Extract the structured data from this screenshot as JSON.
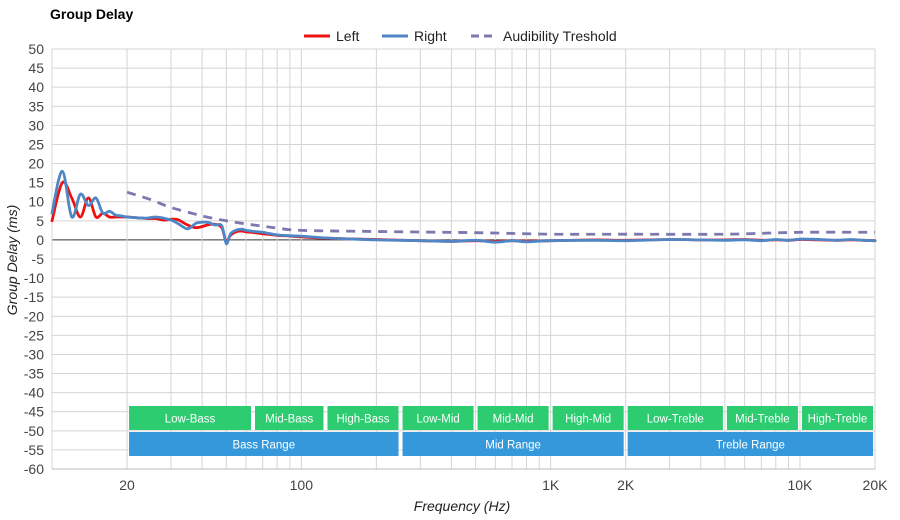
{
  "chart_data": {
    "type": "line",
    "title": "Group Delay",
    "xlabel": "Frequency (Hz)",
    "ylabel": "Group Delay (ms)",
    "xscale": "log",
    "xlim": [
      10,
      20000
    ],
    "ylim": [
      -60,
      50
    ],
    "ystep": 5,
    "xticks": [
      {
        "value": 20,
        "label": "20"
      },
      {
        "value": 100,
        "label": "100"
      },
      {
        "value": 1000,
        "label": "1K"
      },
      {
        "value": 2000,
        "label": "2K"
      },
      {
        "value": 10000,
        "label": "10K"
      },
      {
        "value": 20000,
        "label": "20K"
      }
    ],
    "grid": true,
    "legend": {
      "position": "top-center"
    },
    "series": [
      {
        "name": "Left",
        "color": "#ee1111",
        "style": "solid",
        "x": [
          10,
          11,
          12,
          13,
          14,
          15,
          16,
          17,
          18,
          19,
          20,
          22,
          24,
          26,
          28,
          30,
          32,
          35,
          38,
          42,
          45,
          48,
          50,
          52,
          55,
          58,
          60,
          65,
          70,
          80,
          90,
          100,
          120,
          150,
          200,
          300,
          400,
          500,
          600,
          700,
          800,
          1000,
          1500,
          2000,
          3000,
          4000,
          5000,
          6000,
          7000,
          8000,
          9000,
          10000,
          12000,
          14000,
          16000,
          18000,
          20000
        ],
        "y": [
          5,
          15,
          11,
          6,
          11,
          6,
          7,
          6,
          6,
          6,
          6,
          5.8,
          5.6,
          5.6,
          5.2,
          5.4,
          5.3,
          3.9,
          3.2,
          3.9,
          4.1,
          3.2,
          -0.5,
          1.2,
          2.2,
          2.3,
          2.1,
          1.9,
          1.6,
          1.2,
          1.0,
          0.8,
          0.5,
          0.3,
          0.1,
          -0.2,
          -0.4,
          -0.2,
          -0.4,
          -0.2,
          -0.3,
          -0.2,
          0,
          -0.1,
          0.1,
          0,
          0,
          0.1,
          -0.1,
          0,
          -0.1,
          0.1,
          0,
          -0.1,
          0,
          -0.1,
          -0.2
        ]
      },
      {
        "name": "Right",
        "color": "#4f86c6",
        "style": "solid",
        "x": [
          10,
          11,
          12,
          13,
          14,
          15,
          16,
          17,
          18,
          19,
          20,
          22,
          24,
          26,
          28,
          30,
          32,
          35,
          38,
          42,
          45,
          48,
          50,
          52,
          55,
          58,
          60,
          65,
          70,
          80,
          90,
          100,
          120,
          150,
          200,
          300,
          400,
          500,
          600,
          700,
          800,
          1000,
          1500,
          2000,
          3000,
          4000,
          5000,
          6000,
          7000,
          8000,
          9000,
          10000,
          12000,
          14000,
          16000,
          18000,
          20000
        ],
        "y": [
          7,
          18,
          6,
          12,
          9,
          11,
          7,
          7.5,
          6.5,
          6.3,
          6,
          5.8,
          5.7,
          6,
          5.7,
          5.2,
          4.3,
          2.9,
          4.4,
          4.6,
          3.9,
          3.7,
          -1.0,
          1.6,
          2.6,
          2.8,
          2.5,
          2.2,
          2.0,
          1.3,
          1.1,
          1.0,
          0.6,
          0.3,
          0,
          -0.2,
          -0.4,
          -0.1,
          -0.6,
          -0.2,
          -0.5,
          -0.2,
          -0.1,
          -0.2,
          0.1,
          0,
          -0.1,
          0,
          -0.2,
          0.1,
          -0.1,
          0.2,
          0.1,
          -0.1,
          0.1,
          -0.1,
          -0.2
        ]
      },
      {
        "name": "Audibility Treshold",
        "color": "#7b79ad",
        "style": "dashed",
        "x": [
          20,
          25,
          30,
          40,
          50,
          60,
          70,
          80,
          100,
          200,
          500,
          1000,
          2000,
          5000,
          10000,
          20000
        ],
        "y": [
          12.5,
          10.5,
          8.5,
          6.3,
          5.0,
          4.2,
          3.6,
          3.1,
          2.5,
          2.2,
          1.9,
          1.5,
          1.5,
          1.5,
          2.0,
          2.0
        ]
      }
    ],
    "bands": [
      {
        "row": 1,
        "from": 20,
        "to": 64,
        "label": "Low-Bass",
        "color": "#2ecc71"
      },
      {
        "row": 1,
        "from": 64,
        "to": 125,
        "label": "Mid-Bass",
        "color": "#2ecc71"
      },
      {
        "row": 1,
        "from": 125,
        "to": 250,
        "label": "High-Bass",
        "color": "#2ecc71"
      },
      {
        "row": 1,
        "from": 250,
        "to": 500,
        "label": "Low-Mid",
        "color": "#2ecc71"
      },
      {
        "row": 1,
        "from": 500,
        "to": 1000,
        "label": "Mid-Mid",
        "color": "#2ecc71"
      },
      {
        "row": 1,
        "from": 1000,
        "to": 2000,
        "label": "High-Mid",
        "color": "#2ecc71"
      },
      {
        "row": 1,
        "from": 2000,
        "to": 5000,
        "label": "Low-Treble",
        "color": "#2ecc71"
      },
      {
        "row": 1,
        "from": 5000,
        "to": 10000,
        "label": "Mid-Treble",
        "color": "#2ecc71"
      },
      {
        "row": 1,
        "from": 10000,
        "to": 20000,
        "label": "High-Treble",
        "color": "#2ecc71"
      },
      {
        "row": 2,
        "from": 20,
        "to": 250,
        "label": "Bass Range",
        "color": "#3498db"
      },
      {
        "row": 2,
        "from": 250,
        "to": 2000,
        "label": "Mid Range",
        "color": "#3498db"
      },
      {
        "row": 2,
        "from": 2000,
        "to": 20000,
        "label": "Treble Range",
        "color": "#3498db"
      }
    ]
  }
}
